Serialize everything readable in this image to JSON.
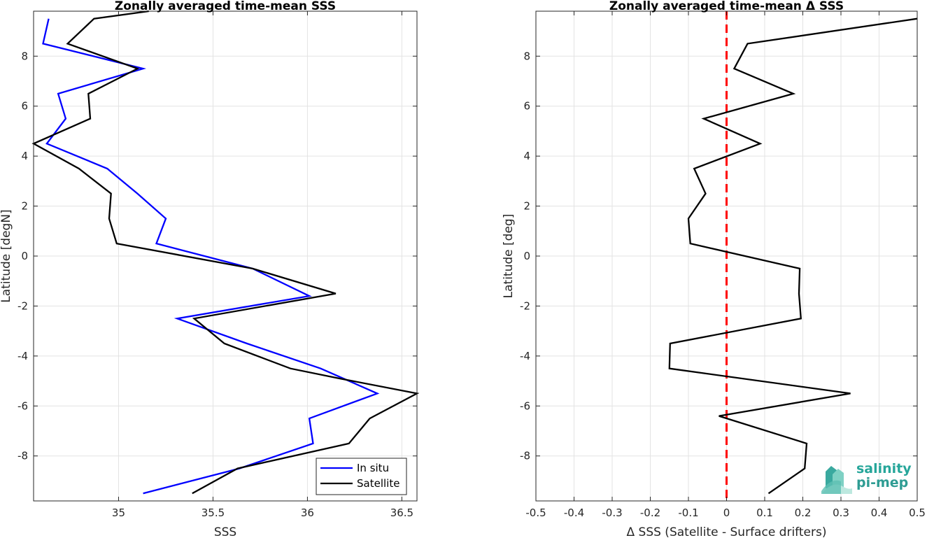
{
  "chart_data": [
    {
      "type": "line",
      "title": "Zonally averaged time-mean SSS",
      "xlabel": "SSS",
      "ylabel": "Latitude [degN]",
      "xlim": [
        34.55,
        36.58
      ],
      "ylim": [
        -9.8,
        9.8
      ],
      "xticks": [
        35,
        35.5,
        36,
        36.5
      ],
      "xtick_labels": [
        "35",
        "35.5",
        "36",
        "36.5"
      ],
      "yticks": [
        -8,
        -6,
        -4,
        -2,
        0,
        2,
        4,
        6,
        8
      ],
      "ytick_labels": [
        "-8",
        "-6",
        "-4",
        "-2",
        "0",
        "2",
        "4",
        "6",
        "8"
      ],
      "grid": true,
      "legend_position": "bottom-right",
      "series": [
        {
          "name": "In situ",
          "color": "#0000ff",
          "points": [
            [
              35.13,
              -9.5
            ],
            [
              35.64,
              -8.5
            ],
            [
              36.03,
              -7.5
            ],
            [
              36.01,
              -6.5
            ],
            [
              36.37,
              -5.5
            ],
            [
              36.07,
              -4.5
            ],
            [
              35.68,
              -3.5
            ],
            [
              35.31,
              -2.5
            ],
            [
              36.01,
              -1.6
            ],
            [
              35.71,
              -0.5
            ],
            [
              35.2,
              0.5
            ],
            [
              35.25,
              1.5
            ],
            [
              35.1,
              2.5
            ],
            [
              34.94,
              3.5
            ],
            [
              34.62,
              4.5
            ],
            [
              34.72,
              5.5
            ],
            [
              34.68,
              6.5
            ],
            [
              35.13,
              7.5
            ],
            [
              34.6,
              8.5
            ],
            [
              34.63,
              9.5
            ]
          ]
        },
        {
          "name": "Satellite",
          "color": "#000000",
          "points": [
            [
              35.39,
              -9.5
            ],
            [
              35.63,
              -8.5
            ],
            [
              36.22,
              -7.5
            ],
            [
              36.33,
              -6.5
            ],
            [
              36.58,
              -5.5
            ],
            [
              36.17,
              -4.9
            ],
            [
              35.91,
              -4.5
            ],
            [
              35.56,
              -3.5
            ],
            [
              35.4,
              -2.5
            ],
            [
              36.15,
              -1.5
            ],
            [
              35.71,
              -0.5
            ],
            [
              34.99,
              0.5
            ],
            [
              34.95,
              1.5
            ],
            [
              34.96,
              2.5
            ],
            [
              34.79,
              3.5
            ],
            [
              34.55,
              4.5
            ],
            [
              34.85,
              5.5
            ],
            [
              34.84,
              6.5
            ],
            [
              35.1,
              7.5
            ],
            [
              34.73,
              8.5
            ],
            [
              34.87,
              9.5
            ],
            [
              35.16,
              9.8
            ]
          ]
        }
      ]
    },
    {
      "type": "line",
      "title": "Zonally averaged time-mean Δ SSS",
      "xlabel": "Δ SSS (Satellite - Surface drifters)",
      "ylabel": "Latitude [deg]",
      "xlim": [
        -0.5,
        0.5
      ],
      "ylim": [
        -9.8,
        9.8
      ],
      "xticks": [
        -0.5,
        -0.4,
        -0.3,
        -0.2,
        -0.1,
        0,
        0.1,
        0.2,
        0.3,
        0.4,
        0.5
      ],
      "xtick_labels": [
        "-0.5",
        "-0.4",
        "-0.3",
        "-0.2",
        "-0.1",
        "0",
        "0.1",
        "0.2",
        "0.3",
        "0.4",
        "0.5"
      ],
      "yticks": [
        -8,
        -6,
        -4,
        -2,
        0,
        2,
        4,
        6,
        8
      ],
      "ytick_labels": [
        "-8",
        "-6",
        "-4",
        "-2",
        "0",
        "2",
        "4",
        "6",
        "8"
      ],
      "grid": true,
      "reference_line": {
        "x": 0,
        "color": "#ff0000",
        "style": "dashed"
      },
      "series": [
        {
          "color": "#000000",
          "points": [
            [
              0.11,
              -9.5
            ],
            [
              0.205,
              -8.5
            ],
            [
              0.21,
              -7.5
            ],
            [
              -0.02,
              -6.4
            ],
            [
              0.325,
              -5.5
            ],
            [
              -0.15,
              -4.5
            ],
            [
              -0.148,
              -3.5
            ],
            [
              0.195,
              -2.5
            ],
            [
              0.19,
              -1.5
            ],
            [
              0.192,
              -0.5
            ],
            [
              -0.095,
              0.5
            ],
            [
              -0.1,
              1.5
            ],
            [
              -0.055,
              2.5
            ],
            [
              -0.085,
              3.5
            ],
            [
              0.088,
              4.5
            ],
            [
              -0.06,
              5.5
            ],
            [
              0.175,
              6.5
            ],
            [
              0.02,
              7.5
            ],
            [
              0.055,
              8.5
            ],
            [
              0.5,
              9.5
            ]
          ]
        }
      ]
    }
  ],
  "logo": {
    "line1": "salinity",
    "line2": "pi-mep",
    "color": "#26a69a"
  }
}
